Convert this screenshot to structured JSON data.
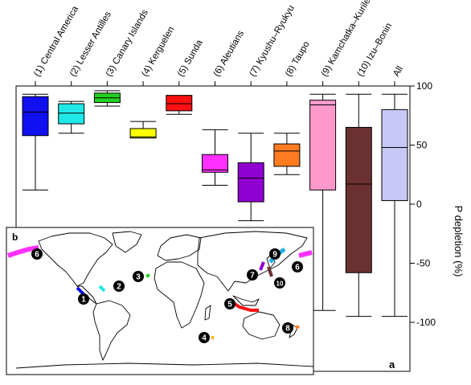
{
  "chart_data": {
    "type": "box",
    "panel_label": "a",
    "inset_label": "b",
    "ylabel": "P depletion (%)",
    "ylim": [
      -145,
      108
    ],
    "yticks": [
      100,
      50,
      0,
      -50,
      -100
    ],
    "grid": false,
    "categories": [
      "(1) Central America",
      "(2) Lesser Antilles",
      "(3) Canary Islands",
      "(4) Kerguelen",
      "(5) Sunda",
      "(6) Aleutians",
      "(7) Kyushu–Ryukyu",
      "(8) Taupo",
      "(9) Kamchatka–Kurile",
      "(10) Izu–Bonin",
      "All"
    ],
    "boxes": [
      {
        "min": 12,
        "q1": 58,
        "median": 78,
        "q3": 91,
        "max": 93,
        "color": "#1010f0"
      },
      {
        "min": 60,
        "q1": 68,
        "median": 77,
        "q3": 85,
        "max": 87,
        "color": "#20e8e8"
      },
      {
        "min": 83,
        "q1": 86,
        "median": 90,
        "q3": 94,
        "max": 96,
        "color": "#22d022"
      },
      {
        "min": 56,
        "q1": 56,
        "median": 57,
        "q3": 64,
        "max": 70,
        "color": "#ffff00"
      },
      {
        "min": 76,
        "q1": 79,
        "median": 85,
        "q3": 92,
        "max": 92,
        "color": "#ff1010"
      },
      {
        "min": 16,
        "q1": 27,
        "median": 29,
        "q3": 42,
        "max": 63,
        "color": "#ff30ff"
      },
      {
        "min": -14,
        "q1": 2,
        "median": 22,
        "q3": 35,
        "max": 60,
        "color": "#9000d0"
      },
      {
        "min": 25,
        "q1": 32,
        "median": 45,
        "q3": 51,
        "max": 60,
        "color": "#ff7a20"
      },
      {
        "min": -90,
        "q1": 12,
        "median": 84,
        "q3": 88,
        "max": 93,
        "color": "#ff99cc"
      },
      {
        "min": -95,
        "q1": -58,
        "median": 17,
        "q3": 65,
        "max": 93,
        "color": "#6b3030"
      },
      {
        "min": -95,
        "q1": 3,
        "median": 48,
        "q3": 80,
        "max": 93,
        "color": "#c8c8f8"
      }
    ],
    "map_markers": [
      "1",
      "2",
      "3",
      "4",
      "5",
      "6",
      "6",
      "7",
      "8",
      "9",
      "10"
    ]
  }
}
